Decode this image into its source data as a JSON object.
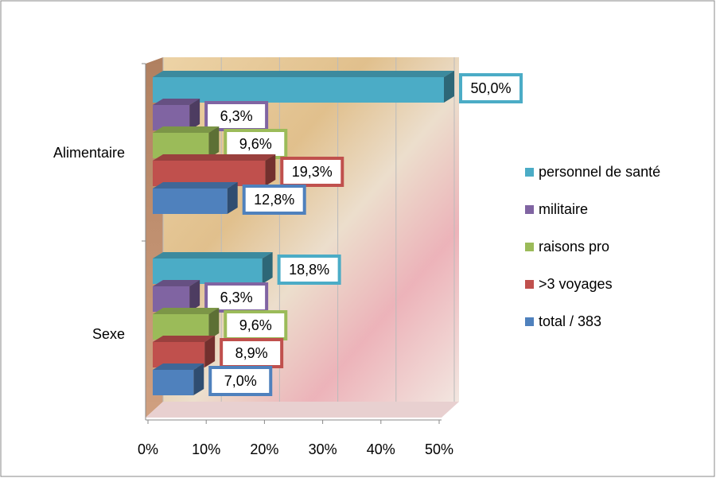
{
  "chart_data": {
    "type": "bar3d",
    "categories": [
      "Alimentaire",
      "Sexe"
    ],
    "series": [
      {
        "name": "personnel de santé",
        "color": "#4bacc6",
        "values": [
          50.0,
          18.8
        ],
        "value_labels": [
          "50,0%",
          "18,8%"
        ]
      },
      {
        "name": "militaire",
        "color": "#8064a2",
        "values": [
          6.3,
          6.3
        ],
        "value_labels": [
          "6,3%",
          "6,3%"
        ]
      },
      {
        "name": "raisons pro",
        "color": "#9bbb59",
        "values": [
          9.6,
          9.6
        ],
        "value_labels": [
          "9,6%",
          "9,6%"
        ]
      },
      {
        "name": ">3 voyages",
        "color": "#c0504d",
        "values": [
          19.3,
          8.9
        ],
        "value_labels": [
          "19,3%",
          "8,9%"
        ]
      },
      {
        "name": "total / 383",
        "color": "#4f81bd",
        "values": [
          12.8,
          7.0
        ],
        "value_labels": [
          "12,8%",
          "7,0%"
        ]
      }
    ],
    "xlim": [
      0,
      50
    ],
    "xticks": [
      {
        "value": 0,
        "label": "0%"
      },
      {
        "value": 10,
        "label": "10%"
      },
      {
        "value": 20,
        "label": "20%"
      },
      {
        "value": 30,
        "label": "30%"
      },
      {
        "value": 40,
        "label": "40%"
      },
      {
        "value": 50,
        "label": "50%"
      }
    ],
    "grid": true,
    "legend": "right"
  }
}
